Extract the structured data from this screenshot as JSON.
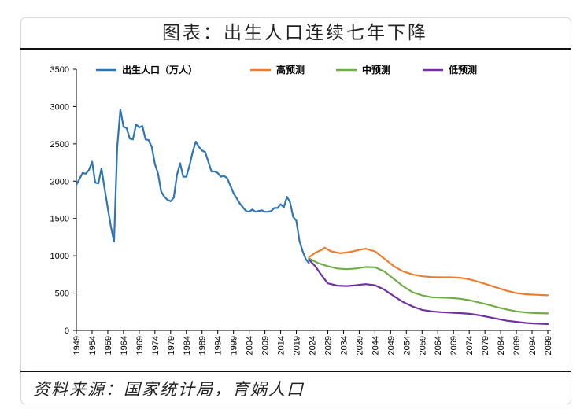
{
  "title": "图表：出生人口连续七年下降",
  "source": "资料来源：国家统计局，育娲人口",
  "chart_data": {
    "type": "line",
    "ylim": [
      0,
      3500
    ],
    "yticks": [
      0,
      500,
      1000,
      1500,
      2000,
      2500,
      3000,
      3500
    ],
    "xlim": [
      1949,
      2100
    ],
    "xticks": [
      1949,
      1954,
      1959,
      1964,
      1969,
      1974,
      1979,
      1984,
      1989,
      1994,
      1999,
      2004,
      2009,
      2014,
      2019,
      2024,
      2029,
      2034,
      2039,
      2044,
      2049,
      2054,
      2059,
      2064,
      2069,
      2074,
      2079,
      2084,
      2089,
      2094,
      2099
    ],
    "legend_position": "top",
    "series": [
      {
        "name": "出生人口（万人）",
        "color": "#2e75b6",
        "x": [
          1949,
          1950,
          1951,
          1952,
          1953,
          1954,
          1955,
          1956,
          1957,
          1958,
          1959,
          1960,
          1961,
          1962,
          1963,
          1964,
          1965,
          1966,
          1967,
          1968,
          1969,
          1970,
          1971,
          1972,
          1973,
          1974,
          1975,
          1976,
          1977,
          1978,
          1979,
          1980,
          1981,
          1982,
          1983,
          1984,
          1985,
          1986,
          1987,
          1988,
          1989,
          1990,
          1991,
          1992,
          1993,
          1994,
          1995,
          1996,
          1997,
          1998,
          1999,
          2000,
          2001,
          2002,
          2003,
          2004,
          2005,
          2006,
          2007,
          2008,
          2009,
          2010,
          2011,
          2012,
          2013,
          2014,
          2015,
          2016,
          2017,
          2018,
          2019,
          2020,
          2021,
          2022,
          2023
        ],
        "y": [
          1950,
          2030,
          2110,
          2100,
          2150,
          2260,
          1980,
          1970,
          2170,
          1900,
          1640,
          1390,
          1190,
          2450,
          2960,
          2730,
          2710,
          2570,
          2560,
          2760,
          2720,
          2740,
          2560,
          2550,
          2460,
          2230,
          2100,
          1860,
          1790,
          1750,
          1730,
          1780,
          2080,
          2240,
          2060,
          2060,
          2210,
          2390,
          2530,
          2460,
          2410,
          2390,
          2260,
          2130,
          2130,
          2110,
          2060,
          2070,
          2040,
          1940,
          1840,
          1770,
          1700,
          1650,
          1600,
          1590,
          1620,
          1590,
          1600,
          1610,
          1590,
          1590,
          1600,
          1640,
          1640,
          1690,
          1650,
          1790,
          1720,
          1520,
          1470,
          1200,
          1062,
          956,
          902
        ]
      },
      {
        "name": "高预测",
        "color": "#ed7d31",
        "x": [
          2023,
          2025,
          2027,
          2028,
          2030,
          2033,
          2036,
          2039,
          2041,
          2044,
          2047,
          2050,
          2053,
          2056,
          2059,
          2062,
          2065,
          2068,
          2071,
          2074,
          2077,
          2080,
          2083,
          2086,
          2089,
          2092,
          2095,
          2099
        ],
        "y": [
          980,
          1040,
          1080,
          1110,
          1060,
          1035,
          1050,
          1080,
          1095,
          1060,
          960,
          860,
          790,
          750,
          725,
          715,
          712,
          712,
          705,
          685,
          650,
          610,
          570,
          530,
          500,
          485,
          478,
          470
        ]
      },
      {
        "name": "中预测",
        "color": "#70ad47",
        "x": [
          2023,
          2026,
          2029,
          2032,
          2035,
          2038,
          2041,
          2044,
          2047,
          2050,
          2053,
          2056,
          2059,
          2062,
          2065,
          2068,
          2071,
          2074,
          2077,
          2080,
          2083,
          2086,
          2089,
          2092,
          2095,
          2099
        ],
        "y": [
          965,
          900,
          860,
          830,
          820,
          830,
          850,
          845,
          790,
          690,
          590,
          510,
          470,
          445,
          440,
          435,
          425,
          405,
          375,
          345,
          310,
          280,
          255,
          240,
          232,
          228
        ]
      },
      {
        "name": "低预测",
        "color": "#7030a0",
        "x": [
          2023,
          2025,
          2027,
          2029,
          2032,
          2035,
          2038,
          2041,
          2044,
          2047,
          2050,
          2053,
          2056,
          2059,
          2062,
          2065,
          2068,
          2071,
          2074,
          2077,
          2080,
          2083,
          2086,
          2089,
          2092,
          2095,
          2099
        ],
        "y": [
          950,
          860,
          740,
          630,
          600,
          595,
          605,
          620,
          605,
          545,
          460,
          380,
          320,
          275,
          255,
          245,
          238,
          232,
          222,
          205,
          180,
          155,
          130,
          115,
          100,
          92,
          85
        ]
      }
    ]
  }
}
